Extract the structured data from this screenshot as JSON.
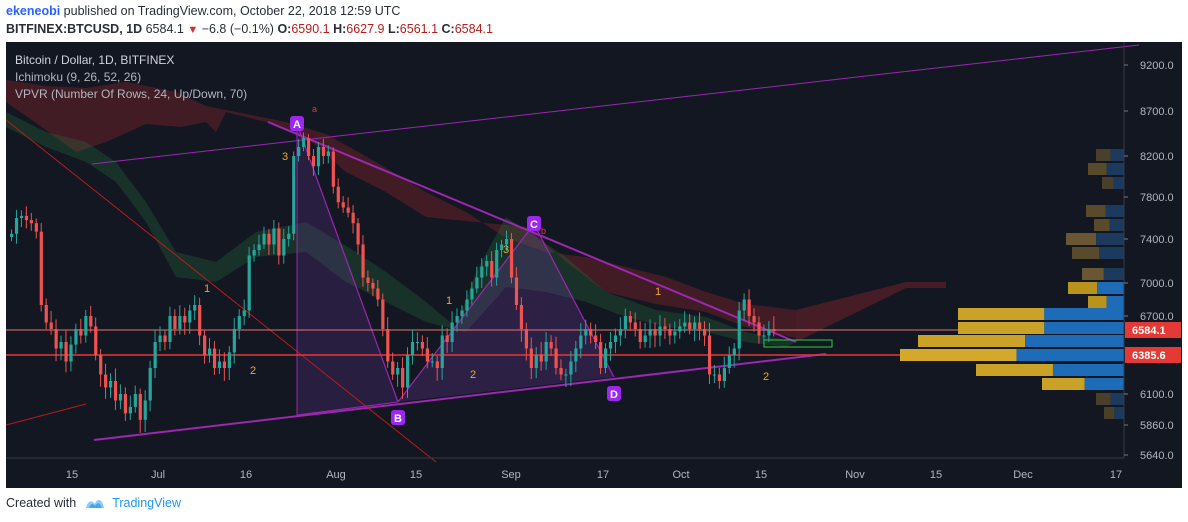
{
  "header": {
    "user": "ekeneobi",
    "published_text": "published on TradingView.com, October 22, 2018 12:59 UTC",
    "symbol": "BITFINEX:BTCUSD, 1D",
    "last": "6584.1",
    "change": "−6.8 (−0.1%)",
    "o_label": "O:",
    "o_value": "6590.1",
    "h_label": "H:",
    "h_value": "6627.9",
    "l_label": "L:",
    "l_value": "6561.1",
    "c_label": "C:",
    "c_value": "6584.1"
  },
  "chart_data": {
    "type": "candlestick",
    "title": "Bitcoin / Dollar, 1D, BITFINEX",
    "indicators": [
      "Ichimoku (9, 26, 52, 26)",
      "VPVR (Number Of Rows, 24, Up/Down, 70)"
    ],
    "y_ticks": [
      9200,
      8700,
      8200,
      7800,
      7400,
      7000,
      6700,
      6100,
      5860,
      5640
    ],
    "y_tick_labels": [
      "9200.0",
      "8700.0",
      "8200.0",
      "7800.0",
      "7400.0",
      "7000.0",
      "6700.0",
      "6100.0",
      "5860.0",
      "5640.0"
    ],
    "x_tick_labels": [
      "15",
      "Jul",
      "16",
      "Aug",
      "15",
      "Sep",
      "17",
      "Oct",
      "15",
      "Nov",
      "15",
      "Dec",
      "17"
    ],
    "price_labels": [
      {
        "value": "6584.1",
        "color": "#e53935"
      },
      {
        "value": "6385.6",
        "color": "#e53935"
      }
    ],
    "pattern_points": [
      {
        "label": "A",
        "price": 8480
      },
      {
        "label": "B",
        "price": 5980
      },
      {
        "label": "C",
        "price": 7430
      },
      {
        "label": "D",
        "price": 6110
      }
    ],
    "wave_labels": [
      "3",
      "1",
      "2",
      "1",
      "2",
      "3",
      "1",
      "2",
      "a",
      "b"
    ],
    "closes": [
      7450,
      7600,
      7620,
      7580,
      7550,
      7470,
      6800,
      6650,
      6600,
      6450,
      6500,
      6350,
      6480,
      6600,
      6550,
      6700,
      6620,
      6400,
      6250,
      6150,
      6200,
      6050,
      6100,
      5950,
      6000,
      6100,
      5900,
      6050,
      6300,
      6500,
      6550,
      6500,
      6700,
      6600,
      6700,
      6650,
      6750,
      6800,
      6550,
      6400,
      6450,
      6300,
      6350,
      6300,
      6420,
      6600,
      6700,
      6750,
      7250,
      7300,
      7350,
      7450,
      7350,
      7500,
      7250,
      7400,
      7450,
      8200,
      8300,
      8400,
      8200,
      8100,
      8300,
      8200,
      8250,
      7900,
      7750,
      7700,
      7650,
      7550,
      7350,
      7050,
      7000,
      6950,
      6850,
      6600,
      6350,
      6250,
      6300,
      6150,
      6400,
      6500,
      6500,
      6450,
      6350,
      6350,
      6300,
      6550,
      6500,
      6650,
      6700,
      6750,
      6850,
      6950,
      7050,
      7150,
      7200,
      7050,
      7300,
      7350,
      7400,
      7050,
      6800,
      6600,
      6450,
      6300,
      6400,
      6350,
      6500,
      6450,
      6300,
      6250,
      6250,
      6350,
      6450,
      6550,
      6600,
      6550,
      6500,
      6300,
      6450,
      6500,
      6550,
      6600,
      6700,
      6650,
      6600,
      6500,
      6550,
      6600,
      6550,
      6620,
      6600,
      6550,
      6580,
      6620,
      6650,
      6600,
      6650,
      6600,
      6550,
      6250,
      6250,
      6200,
      6300,
      6400,
      6450,
      6750,
      6850,
      6700,
      6650,
      6550,
      6550,
      6600,
      6584
    ]
  },
  "footer": {
    "created_with": "Created with",
    "brand": "TradingView"
  }
}
